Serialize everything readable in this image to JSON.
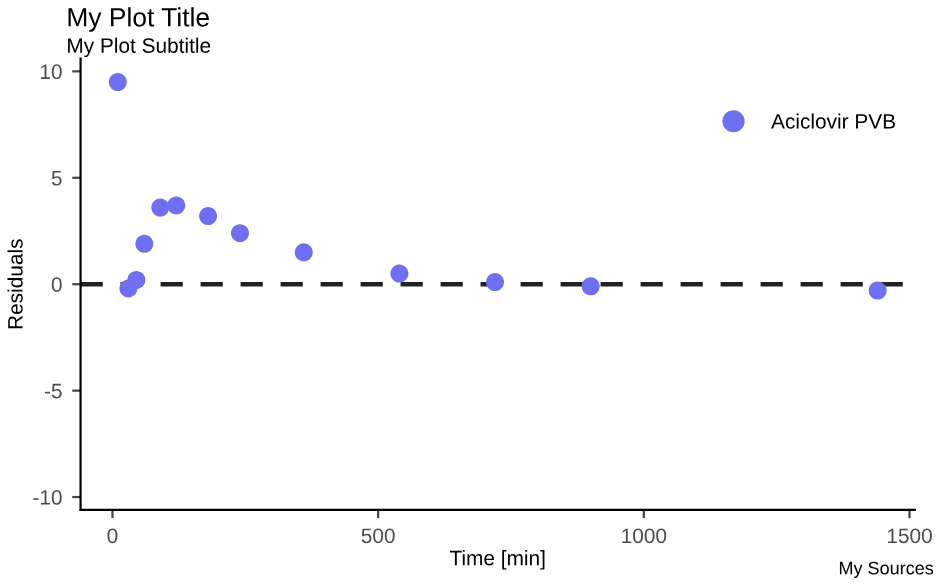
{
  "chart_data": {
    "type": "scatter",
    "title": "My Plot Title",
    "subtitle": "My Plot Subtitle",
    "xlabel": "Time [min]",
    "ylabel": "Residuals",
    "annotations": [
      "My Sources"
    ],
    "x": [
      10,
      30,
      45,
      60,
      90,
      120,
      180,
      240,
      360,
      540,
      720,
      900,
      1440
    ],
    "series": [
      {
        "name": "Aciclovir PVB",
        "color": "#6f6ff2",
        "values": [
          9.5,
          -0.2,
          0.2,
          1.9,
          3.6,
          3.7,
          3.2,
          2.4,
          1.5,
          0.5,
          0.1,
          -0.1,
          -0.3
        ]
      }
    ],
    "xlim": [
      -60,
      1510
    ],
    "xticks": [
      0,
      500,
      1000,
      1500
    ],
    "ylim": [
      -10.6,
      10.6
    ],
    "yticks": [
      -10,
      -5,
      0,
      5,
      10
    ],
    "ref_lines": [
      {
        "axis": "y",
        "value": 0,
        "color": "#222222",
        "line_style": "dashed"
      }
    ],
    "grid": false,
    "legend": "top right",
    "marker": "circle"
  }
}
